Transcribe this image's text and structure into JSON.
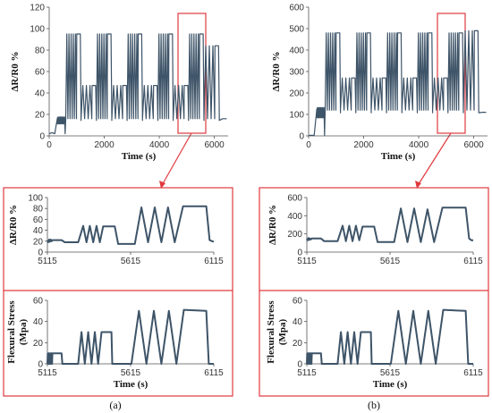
{
  "chart_data": [
    {
      "id": "a_top",
      "type": "line",
      "ylabel": "ΔR/R0 %",
      "xlabel": "Time (s)",
      "xlim": [
        0,
        6500
      ],
      "ylim": [
        0,
        120
      ],
      "xticks": [
        "0",
        "2000",
        "4000",
        "6000"
      ],
      "yticks": [
        "0",
        "20",
        "40",
        "60",
        "80",
        "100",
        "120"
      ],
      "pattern": {
        "t_start": 600,
        "t_end": 6180,
        "blocks": 10,
        "cycle_s": 558,
        "baseline": 16,
        "high_peak": 95,
        "mid_peak": 47,
        "last_high_peak": 84,
        "tail_value": 16
      },
      "highlight_window": [
        5115,
        6115
      ]
    },
    {
      "id": "b_top",
      "type": "line",
      "ylabel": "ΔR/R0 %",
      "xlabel": "Time (s)",
      "xlim": [
        0,
        6500
      ],
      "ylim": [
        0,
        600
      ],
      "xticks": [
        "0",
        "2000",
        "4000",
        "6000"
      ],
      "yticks": [
        "0",
        "100",
        "200",
        "300",
        "400",
        "500",
        "600"
      ],
      "pattern": {
        "t_start": 600,
        "t_end": 6180,
        "blocks": 10,
        "cycle_s": 558,
        "baseline": 120,
        "high_peak": 480,
        "mid_peak": 270,
        "last_high_peak": 490,
        "tail_value": 110
      },
      "highlight_window": [
        5115,
        6115
      ]
    },
    {
      "id": "a_zoom_strain",
      "type": "line",
      "ylabel": "ΔR/R0 %",
      "xlim": [
        5115,
        6115
      ],
      "ylim": [
        0,
        100
      ],
      "xticks": [
        "5115",
        "5615",
        "6115"
      ],
      "yticks": [
        "0",
        "20",
        "40",
        "60",
        "80",
        "100"
      ],
      "points": [
        [
          5115,
          22
        ],
        [
          5120,
          18
        ],
        [
          5125,
          23
        ],
        [
          5130,
          19
        ],
        [
          5135,
          23
        ],
        [
          5140,
          20
        ],
        [
          5145,
          22
        ],
        [
          5150,
          22
        ],
        [
          5200,
          22
        ],
        [
          5220,
          18
        ],
        [
          5300,
          18
        ],
        [
          5330,
          48
        ],
        [
          5350,
          18
        ],
        [
          5370,
          48
        ],
        [
          5390,
          18
        ],
        [
          5410,
          48
        ],
        [
          5430,
          18
        ],
        [
          5450,
          47
        ],
        [
          5520,
          47
        ],
        [
          5540,
          15
        ],
        [
          5600,
          15
        ],
        [
          5640,
          15
        ],
        [
          5680,
          82
        ],
        [
          5720,
          18
        ],
        [
          5760,
          82
        ],
        [
          5800,
          18
        ],
        [
          5840,
          82
        ],
        [
          5880,
          18
        ],
        [
          5930,
          84
        ],
        [
          6070,
          84
        ],
        [
          6090,
          22
        ],
        [
          6105,
          20
        ],
        [
          6115,
          19
        ]
      ]
    },
    {
      "id": "a_zoom_stress",
      "type": "line",
      "ylabel": "Flexural Stress (Mpa)",
      "xlabel": "Time (s)",
      "xlim": [
        5115,
        6115
      ],
      "ylim": [
        0,
        60
      ],
      "xticks": [
        "5115",
        "5615",
        "6115"
      ],
      "yticks": [
        "0",
        "20",
        "40",
        "60"
      ],
      "points": [
        [
          5115,
          0
        ],
        [
          5117,
          10
        ],
        [
          5119,
          0
        ],
        [
          5121,
          10
        ],
        [
          5123,
          0
        ],
        [
          5125,
          10
        ],
        [
          5127,
          0
        ],
        [
          5129,
          10
        ],
        [
          5131,
          0
        ],
        [
          5133,
          10
        ],
        [
          5135,
          0
        ],
        [
          5137,
          10
        ],
        [
          5139,
          0
        ],
        [
          5141,
          10
        ],
        [
          5143,
          0
        ],
        [
          5145,
          10
        ],
        [
          5200,
          10
        ],
        [
          5205,
          0
        ],
        [
          5300,
          0
        ],
        [
          5320,
          30
        ],
        [
          5340,
          0
        ],
        [
          5360,
          30
        ],
        [
          5380,
          0
        ],
        [
          5400,
          30
        ],
        [
          5420,
          0
        ],
        [
          5440,
          30
        ],
        [
          5500,
          30
        ],
        [
          5505,
          0
        ],
        [
          5620,
          0
        ],
        [
          5665,
          50
        ],
        [
          5710,
          0
        ],
        [
          5755,
          50
        ],
        [
          5800,
          0
        ],
        [
          5845,
          50
        ],
        [
          5890,
          0
        ],
        [
          5935,
          51
        ],
        [
          6070,
          50
        ],
        [
          6085,
          0
        ],
        [
          6115,
          0
        ]
      ]
    },
    {
      "id": "b_zoom_strain",
      "type": "line",
      "ylabel": "ΔR/R0 %",
      "xlim": [
        5115,
        6115
      ],
      "ylim": [
        0,
        600
      ],
      "xticks": [
        "5115",
        "5615",
        "6115"
      ],
      "yticks": [
        "0",
        "200",
        "400",
        "600"
      ],
      "points": [
        [
          5115,
          150
        ],
        [
          5120,
          130
        ],
        [
          5125,
          155
        ],
        [
          5130,
          135
        ],
        [
          5135,
          150
        ],
        [
          5140,
          140
        ],
        [
          5145,
          150
        ],
        [
          5150,
          150
        ],
        [
          5200,
          150
        ],
        [
          5220,
          120
        ],
        [
          5300,
          120
        ],
        [
          5330,
          290
        ],
        [
          5350,
          120
        ],
        [
          5370,
          290
        ],
        [
          5390,
          120
        ],
        [
          5410,
          290
        ],
        [
          5430,
          130
        ],
        [
          5450,
          280
        ],
        [
          5520,
          280
        ],
        [
          5540,
          110
        ],
        [
          5640,
          110
        ],
        [
          5680,
          480
        ],
        [
          5720,
          110
        ],
        [
          5760,
          480
        ],
        [
          5800,
          110
        ],
        [
          5840,
          470
        ],
        [
          5880,
          110
        ],
        [
          5930,
          490
        ],
        [
          6070,
          490
        ],
        [
          6090,
          150
        ],
        [
          6105,
          130
        ],
        [
          6115,
          130
        ]
      ]
    },
    {
      "id": "b_zoom_stress",
      "type": "line",
      "ylabel": "Flexural Stress (Mpa)",
      "xlabel": "Time (s)",
      "xlim": [
        5115,
        6115
      ],
      "ylim": [
        0,
        60
      ],
      "xticks": [
        "5115",
        "5615",
        "6115"
      ],
      "yticks": [
        "0",
        "20",
        "40",
        "60"
      ],
      "points": [
        [
          5115,
          0
        ],
        [
          5117,
          10
        ],
        [
          5119,
          0
        ],
        [
          5121,
          10
        ],
        [
          5123,
          0
        ],
        [
          5125,
          10
        ],
        [
          5127,
          0
        ],
        [
          5129,
          10
        ],
        [
          5131,
          0
        ],
        [
          5133,
          10
        ],
        [
          5135,
          0
        ],
        [
          5137,
          10
        ],
        [
          5139,
          0
        ],
        [
          5141,
          10
        ],
        [
          5143,
          0
        ],
        [
          5145,
          10
        ],
        [
          5200,
          10
        ],
        [
          5205,
          0
        ],
        [
          5300,
          0
        ],
        [
          5320,
          30
        ],
        [
          5340,
          0
        ],
        [
          5360,
          30
        ],
        [
          5380,
          0
        ],
        [
          5400,
          30
        ],
        [
          5420,
          0
        ],
        [
          5440,
          30
        ],
        [
          5500,
          30
        ],
        [
          5505,
          0
        ],
        [
          5620,
          0
        ],
        [
          5665,
          50
        ],
        [
          5710,
          0
        ],
        [
          5755,
          50
        ],
        [
          5800,
          0
        ],
        [
          5845,
          50
        ],
        [
          5890,
          0
        ],
        [
          5935,
          51
        ],
        [
          6070,
          50
        ],
        [
          6085,
          0
        ],
        [
          6115,
          0
        ]
      ]
    }
  ],
  "panel_labels": {
    "a": "(a)",
    "b": "(b)"
  },
  "colors": {
    "series": "#3e5468",
    "highlight": "#e0393e",
    "axis": "#555555"
  }
}
